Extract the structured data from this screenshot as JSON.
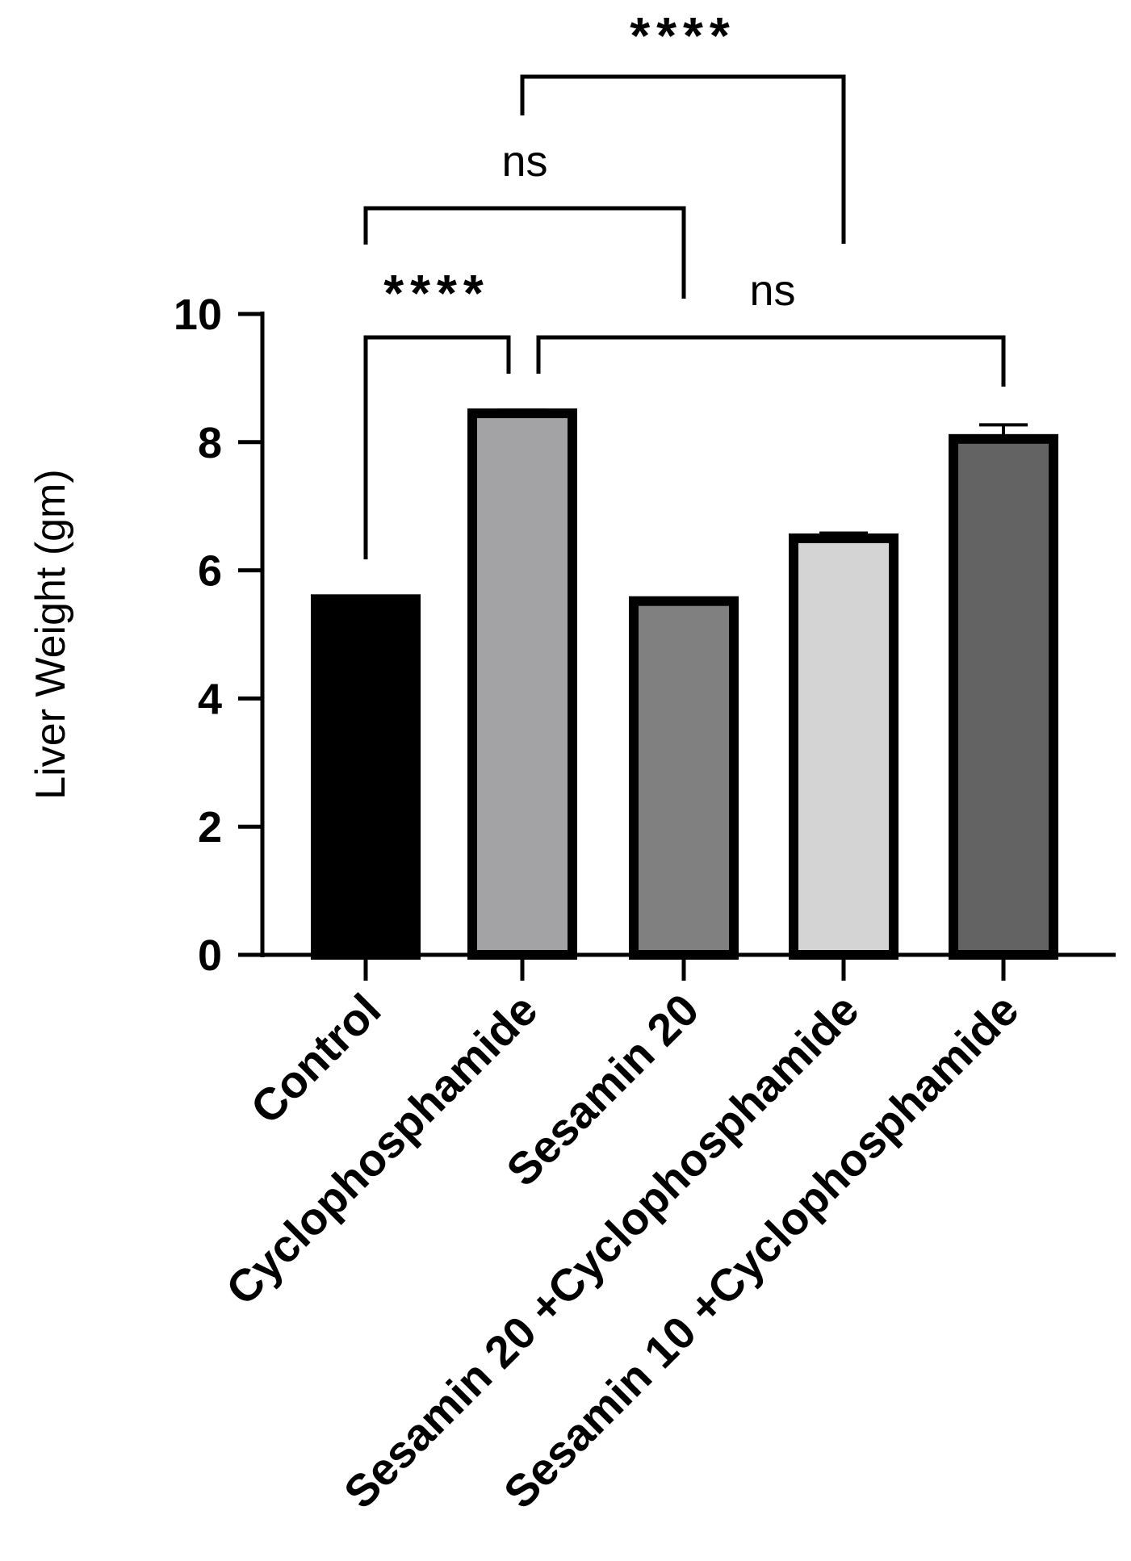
{
  "chart_data": {
    "type": "bar",
    "ylabel": "Liver Weight (gm)",
    "xlabel": "",
    "ylim": [
      0,
      10
    ],
    "yticks": [
      0,
      2,
      4,
      6,
      8,
      10
    ],
    "grid": false,
    "categories": [
      "Control",
      "Cyclophosphamide",
      "Sesamin 20",
      "Sesamin 20 +Cyclophosphamide",
      "Sesamin 10 +Cyclophosphamide"
    ],
    "values": [
      5.55,
      8.45,
      5.52,
      6.5,
      8.05
    ],
    "errors": [
      0.04,
      0.05,
      0.04,
      0.08,
      0.22
    ],
    "bar_colors": [
      "#000000",
      "#a3a3a6",
      "#808080",
      "#d4d4d4",
      "#636363"
    ],
    "significance": [
      {
        "from": "Control",
        "to": "Cyclophosphamide",
        "label": "****"
      },
      {
        "from": "Cyclophosphamide",
        "to": "Sesamin 10 +Cyclophosphamide",
        "label": "ns"
      },
      {
        "from": "Control",
        "to": "Sesamin 20",
        "label": "ns"
      },
      {
        "from": "Cyclophosphamide",
        "to": "Sesamin 20 +Cyclophosphamide",
        "label": "****"
      }
    ]
  }
}
